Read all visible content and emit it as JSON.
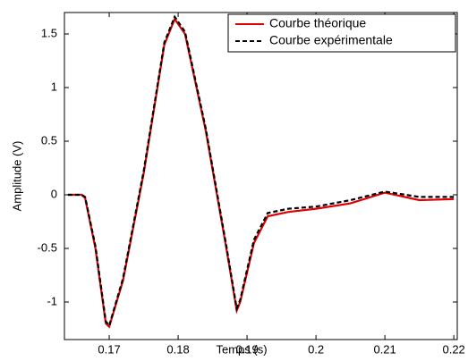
{
  "chart_data": {
    "type": "line",
    "xlabel": "Temps (s)",
    "ylabel": "Amplitude (V)",
    "x": [
      0.164,
      0.166,
      0.1665,
      0.168,
      0.1695,
      0.17,
      0.172,
      0.175,
      0.178,
      0.1795,
      0.181,
      0.184,
      0.187,
      0.1885,
      0.189,
      0.191,
      0.193,
      0.196,
      0.2,
      0.205,
      0.21,
      0.215,
      0.22
    ],
    "series": [
      {
        "name": "Courbe théorique",
        "color": "#e00000",
        "dash": false,
        "values": [
          0,
          0,
          -0.03,
          -0.5,
          -1.2,
          -1.23,
          -0.8,
          0.2,
          1.4,
          1.64,
          1.5,
          0.6,
          -0.5,
          -1.08,
          -1.0,
          -0.45,
          -0.2,
          -0.16,
          -0.13,
          -0.08,
          0.02,
          -0.05,
          -0.04
        ]
      },
      {
        "name": "Courbe expérimentale",
        "color": "#000000",
        "dash": true,
        "values": [
          0,
          0,
          -0.02,
          -0.48,
          -1.18,
          -1.22,
          -0.78,
          0.22,
          1.42,
          1.66,
          1.52,
          0.62,
          -0.48,
          -1.06,
          -0.98,
          -0.42,
          -0.17,
          -0.13,
          -0.11,
          -0.05,
          0.03,
          -0.02,
          -0.02
        ]
      }
    ],
    "xlim": [
      0.1635,
      0.2205
    ],
    "xticks": [
      0.17,
      0.18,
      0.19,
      0.2,
      0.21,
      0.22
    ],
    "ylim": [
      -1.35,
      1.7
    ],
    "yticks": [
      -1,
      -0.5,
      0,
      0.5,
      1,
      1.5
    ],
    "legend": "upper right"
  }
}
